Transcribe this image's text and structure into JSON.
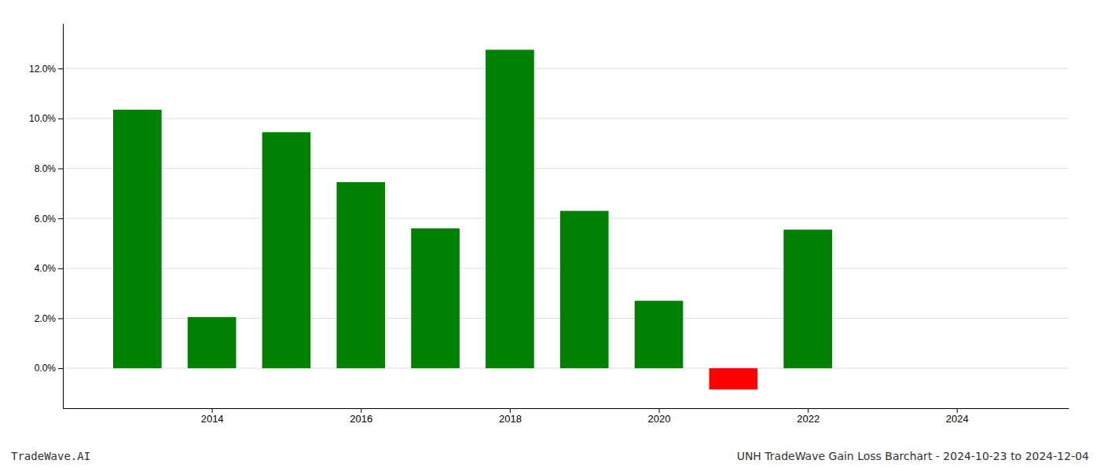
{
  "chart_data": {
    "type": "bar",
    "title": "UNH TradeWave Gain Loss Barchart - 2024-10-23 to 2024-12-04",
    "annotations": [
      "TradeWave.AI"
    ],
    "x": [
      2013,
      2014,
      2015,
      2016,
      2017,
      2018,
      2019,
      2020,
      2021,
      2022
    ],
    "values": [
      0.1035,
      0.0205,
      0.0945,
      0.0745,
      0.056,
      0.1275,
      0.063,
      0.027,
      -0.0085,
      0.0555
    ],
    "colors": [
      "#008000",
      "#008000",
      "#008000",
      "#008000",
      "#008000",
      "#008000",
      "#008000",
      "#008000",
      "#ff0000",
      "#008000"
    ],
    "xlim": [
      2012.0,
      2025.5
    ],
    "xticks": [
      2014,
      2016,
      2018,
      2020,
      2022,
      2024
    ],
    "ylim": [
      -0.016,
      0.138
    ],
    "yticks": [
      {
        "value": 0,
        "label": "0.0%"
      },
      {
        "value": 0.02,
        "label": "2.0%"
      },
      {
        "value": 0.04,
        "label": "4.0%"
      },
      {
        "value": 0.06,
        "label": "6.0%"
      },
      {
        "value": 0.08,
        "label": "8.0%"
      },
      {
        "value": 0.1,
        "label": "10.0%"
      },
      {
        "value": 0.12,
        "label": "12.0%"
      }
    ],
    "grid": true
  }
}
